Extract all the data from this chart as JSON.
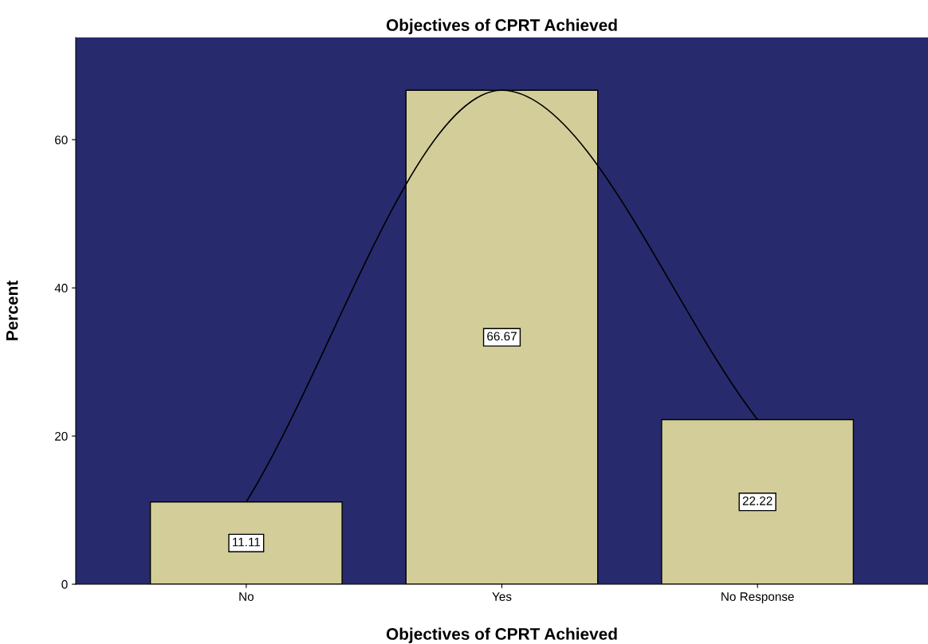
{
  "chart_data": {
    "type": "bar",
    "title": "Objectives of CPRT Achieved",
    "xlabel": "Objectives of CPRT Achieved",
    "ylabel": "Percent",
    "categories": [
      "No",
      "Yes",
      "No Response"
    ],
    "series": [
      {
        "color": "#d3ce99",
        "values": [
          11.11,
          66.67,
          22.22
        ],
        "value_labels": [
          "11.11",
          "66.67",
          "22.22"
        ]
      },
      {
        "type": "line",
        "color": "#000000",
        "values": [
          11.11,
          66.67,
          22.22
        ]
      }
    ],
    "ylim": [
      0,
      73.8
    ],
    "yticks": [
      0,
      20,
      40,
      60
    ],
    "grid": false,
    "legend": false,
    "marker": "none"
  }
}
